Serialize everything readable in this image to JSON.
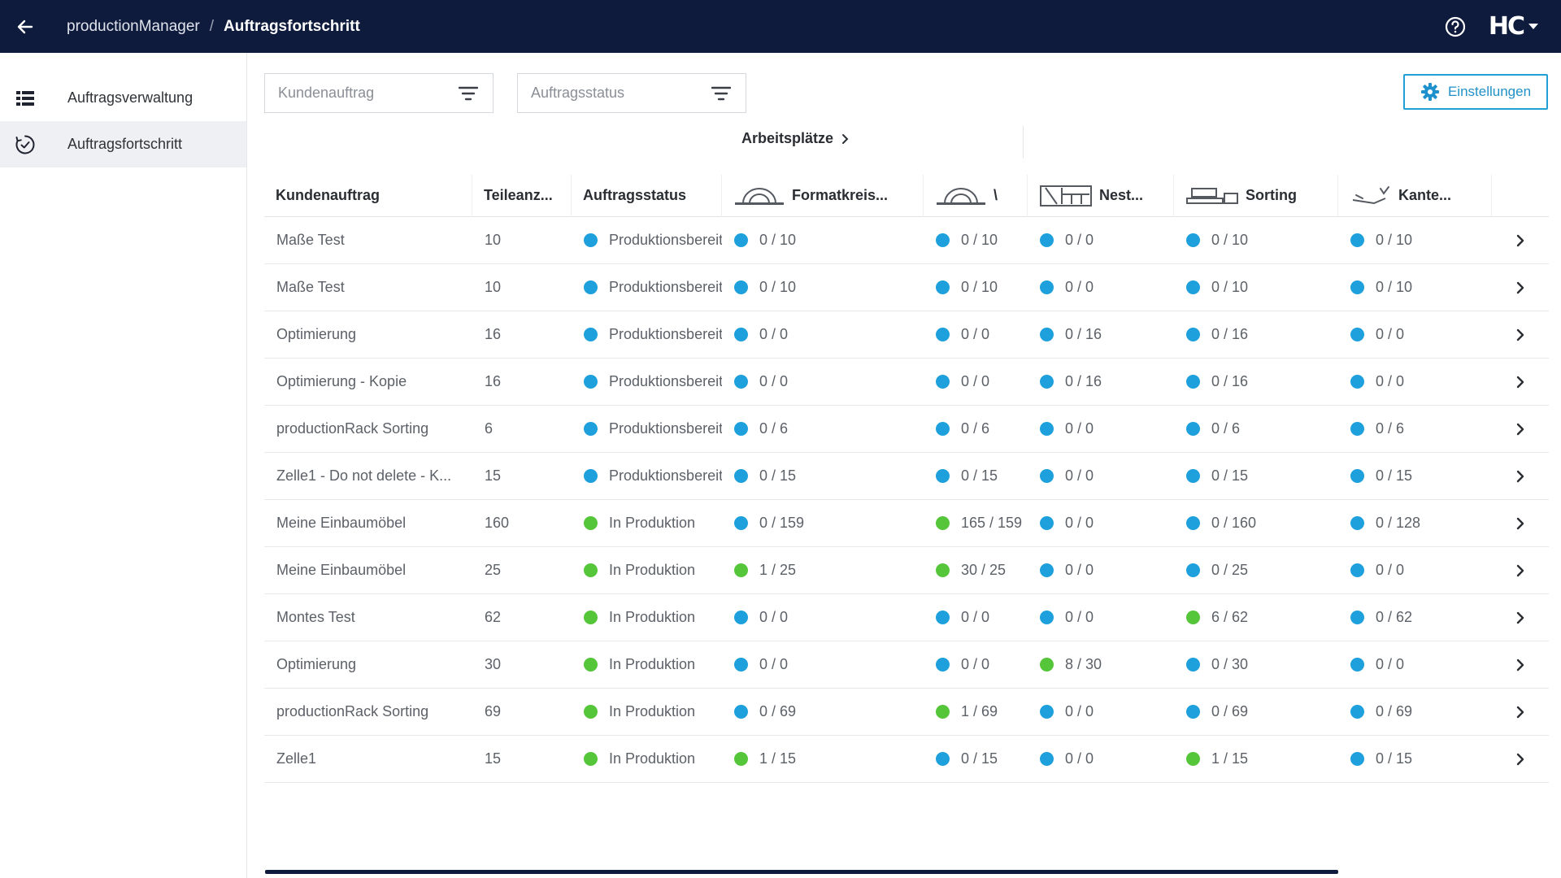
{
  "topbar": {
    "app": "productionManager",
    "separator": "/",
    "page": "Auftragsfortschritt",
    "logo": "HC"
  },
  "sidebar": {
    "items": [
      {
        "label": "Auftragsverwaltung",
        "icon": "list-icon"
      },
      {
        "label": "Auftragsfortschritt",
        "icon": "clock-check-icon"
      }
    ]
  },
  "filters": {
    "customer_order_placeholder": "Kundenauftrag",
    "order_status_placeholder": "Auftragsstatus"
  },
  "settings_label": "Einstellungen",
  "workplaces_label": "Arbeitsplätze",
  "columns": [
    "Kundenauftrag",
    "Teileanz...",
    "Auftragsstatus",
    "Formatkreis...",
    "\\",
    "Nest...",
    "Sorting",
    "Kante..."
  ],
  "colors": {
    "blue": "#1ea0dc",
    "green": "#55c63a",
    "topbar": "#0f1b3c",
    "accent": "#22a0d6"
  },
  "rows": [
    {
      "order": "Maße Test",
      "parts": "10",
      "status": "Produktionsbereit",
      "status_color": "blue",
      "formatkreis": "0 / 10",
      "formatkreis_color": "blue",
      "w2": "0 / 10",
      "w2_color": "blue",
      "nest": "0 / 0",
      "nest_color": "blue",
      "sorting": "0 / 10",
      "sorting_color": "blue",
      "kante": "0 / 10",
      "kante_color": "blue"
    },
    {
      "order": "Maße Test",
      "parts": "10",
      "status": "Produktionsbereit",
      "status_color": "blue",
      "formatkreis": "0 / 10",
      "formatkreis_color": "blue",
      "w2": "0 / 10",
      "w2_color": "blue",
      "nest": "0 / 0",
      "nest_color": "blue",
      "sorting": "0 / 10",
      "sorting_color": "blue",
      "kante": "0 / 10",
      "kante_color": "blue"
    },
    {
      "order": "Optimierung",
      "parts": "16",
      "status": "Produktionsbereit",
      "status_color": "blue",
      "formatkreis": "0 / 0",
      "formatkreis_color": "blue",
      "w2": "0 / 0",
      "w2_color": "blue",
      "nest": "0 / 16",
      "nest_color": "blue",
      "sorting": "0 / 16",
      "sorting_color": "blue",
      "kante": "0 / 0",
      "kante_color": "blue"
    },
    {
      "order": "Optimierung - Kopie",
      "parts": "16",
      "status": "Produktionsbereit",
      "status_color": "blue",
      "formatkreis": "0 / 0",
      "formatkreis_color": "blue",
      "w2": "0 / 0",
      "w2_color": "blue",
      "nest": "0 / 16",
      "nest_color": "blue",
      "sorting": "0 / 16",
      "sorting_color": "blue",
      "kante": "0 / 0",
      "kante_color": "blue"
    },
    {
      "order": "productionRack Sorting",
      "parts": "6",
      "status": "Produktionsbereit",
      "status_color": "blue",
      "formatkreis": "0 / 6",
      "formatkreis_color": "blue",
      "w2": "0 / 6",
      "w2_color": "blue",
      "nest": "0 / 0",
      "nest_color": "blue",
      "sorting": "0 / 6",
      "sorting_color": "blue",
      "kante": "0 / 6",
      "kante_color": "blue"
    },
    {
      "order": "Zelle1 - Do not delete - K...",
      "parts": "15",
      "status": "Produktionsbereit",
      "status_color": "blue",
      "formatkreis": "0 / 15",
      "formatkreis_color": "blue",
      "w2": "0 / 15",
      "w2_color": "blue",
      "nest": "0 / 0",
      "nest_color": "blue",
      "sorting": "0 / 15",
      "sorting_color": "blue",
      "kante": "0 / 15",
      "kante_color": "blue"
    },
    {
      "order": "Meine Einbaumöbel",
      "parts": "160",
      "status": "In Produktion",
      "status_color": "green",
      "formatkreis": "0 / 159",
      "formatkreis_color": "blue",
      "w2": "165 / 159",
      "w2_color": "green",
      "nest": "0 / 0",
      "nest_color": "blue",
      "sorting": "0 / 160",
      "sorting_color": "blue",
      "kante": "0 / 128",
      "kante_color": "blue"
    },
    {
      "order": "Meine Einbaumöbel",
      "parts": "25",
      "status": "In Produktion",
      "status_color": "green",
      "formatkreis": "1 / 25",
      "formatkreis_color": "green",
      "w2": "30 / 25",
      "w2_color": "green",
      "nest": "0 / 0",
      "nest_color": "blue",
      "sorting": "0 / 25",
      "sorting_color": "blue",
      "kante": "0 / 0",
      "kante_color": "blue"
    },
    {
      "order": "Montes Test",
      "parts": "62",
      "status": "In Produktion",
      "status_color": "green",
      "formatkreis": "0 / 0",
      "formatkreis_color": "blue",
      "w2": "0 / 0",
      "w2_color": "blue",
      "nest": "0 / 0",
      "nest_color": "blue",
      "sorting": "6 / 62",
      "sorting_color": "green",
      "kante": "0 / 62",
      "kante_color": "blue"
    },
    {
      "order": "Optimierung",
      "parts": "30",
      "status": "In Produktion",
      "status_color": "green",
      "formatkreis": "0 / 0",
      "formatkreis_color": "blue",
      "w2": "0 / 0",
      "w2_color": "blue",
      "nest": "8 / 30",
      "nest_color": "green",
      "sorting": "0 / 30",
      "sorting_color": "blue",
      "kante": "0 / 0",
      "kante_color": "blue"
    },
    {
      "order": "productionRack Sorting",
      "parts": "69",
      "status": "In Produktion",
      "status_color": "green",
      "formatkreis": "0 / 69",
      "formatkreis_color": "blue",
      "w2": "1 / 69",
      "w2_color": "green",
      "nest": "0 / 0",
      "nest_color": "blue",
      "sorting": "0 / 69",
      "sorting_color": "blue",
      "kante": "0 / 69",
      "kante_color": "blue"
    },
    {
      "order": "Zelle1",
      "parts": "15",
      "status": "In Produktion",
      "status_color": "green",
      "formatkreis": "1 / 15",
      "formatkreis_color": "green",
      "w2": "0 / 15",
      "w2_color": "blue",
      "nest": "0 / 0",
      "nest_color": "blue",
      "sorting": "1 / 15",
      "sorting_color": "green",
      "kante": "0 / 15",
      "kante_color": "blue"
    }
  ]
}
